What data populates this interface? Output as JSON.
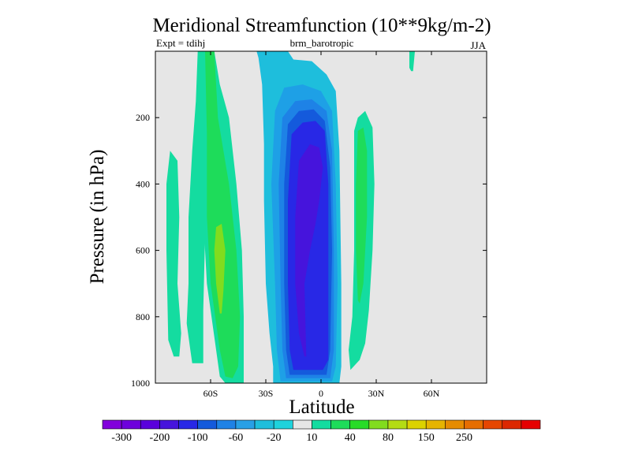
{
  "chart_data": {
    "type": "contour",
    "title": "Meridional Streamfunction (10**9kg/m-2)",
    "left_subtitle": "Expt = tdihj",
    "center_subtitle": "brm_barotropic",
    "right_subtitle": "JJA",
    "xlabel": "Latitude",
    "ylabel": "Pressure (in hPa)",
    "xlim": [
      -90,
      90
    ],
    "ylim": [
      1000,
      0
    ],
    "background_color": "#e6e6e6",
    "x_ticks": [
      {
        "value": -60,
        "label": "60S"
      },
      {
        "value": -30,
        "label": "30S"
      },
      {
        "value": 0,
        "label": "0"
      },
      {
        "value": 30,
        "label": "30N"
      },
      {
        "value": 60,
        "label": "60N"
      }
    ],
    "y_ticks": [
      {
        "value": 200,
        "label": "200"
      },
      {
        "value": 400,
        "label": "400"
      },
      {
        "value": 600,
        "label": "600"
      },
      {
        "value": 800,
        "label": "800"
      },
      {
        "value": 1000,
        "label": "1000"
      }
    ],
    "colorbar": {
      "colors": [
        "#8200dc",
        "#6e00dc",
        "#5a00dc",
        "#4614dc",
        "#2828e6",
        "#145adc",
        "#1e82e6",
        "#28a0e6",
        "#1ebedc",
        "#1ed2dc",
        "#e6e6e6",
        "#14dca0",
        "#1edc5a",
        "#28dc28",
        "#82dc1e",
        "#b4dc14",
        "#dcd200",
        "#e6b400",
        "#e68c00",
        "#e66e00",
        "#e64600",
        "#dc2800",
        "#e60000"
      ],
      "labels": [
        "-300",
        "-200",
        "-100",
        "-60",
        "-20",
        "10",
        "40",
        "80",
        "150",
        "250"
      ],
      "label_positions": [
        1,
        3,
        5,
        7,
        9,
        11,
        13,
        15,
        17,
        19
      ]
    },
    "contours": [
      {
        "level": "-20",
        "color": "#1ebedc",
        "points": [
          [
            -26,
            1000
          ],
          [
            -26,
            950
          ],
          [
            -28,
            850
          ],
          [
            -30,
            700
          ],
          [
            -31,
            450
          ],
          [
            -31,
            280
          ],
          [
            -32,
            100
          ],
          [
            -34,
            20
          ],
          [
            -35,
            0
          ],
          [
            -18,
            0
          ],
          [
            -15,
            25
          ],
          [
            -5,
            30
          ],
          [
            3,
            70
          ],
          [
            8,
            120
          ],
          [
            10,
            300
          ],
          [
            11,
            700
          ],
          [
            11,
            950
          ],
          [
            10,
            1000
          ]
        ]
      },
      {
        "level": "-40",
        "color": "#1ea0e6",
        "points": [
          [
            -22,
            995
          ],
          [
            -24,
            900
          ],
          [
            -25,
            700
          ],
          [
            -27,
            400
          ],
          [
            -25,
            180
          ],
          [
            -20,
            110
          ],
          [
            -10,
            100
          ],
          [
            0,
            120
          ],
          [
            6,
            180
          ],
          [
            8,
            400
          ],
          [
            9,
            700
          ],
          [
            8,
            950
          ],
          [
            6,
            995
          ]
        ]
      },
      {
        "level": "-60",
        "color": "#1e82e6",
        "points": [
          [
            -19,
            985
          ],
          [
            -21,
            900
          ],
          [
            -22,
            700
          ],
          [
            -23,
            400
          ],
          [
            -21,
            200
          ],
          [
            -14,
            150
          ],
          [
            -5,
            145
          ],
          [
            3,
            180
          ],
          [
            6,
            300
          ],
          [
            7,
            600
          ],
          [
            7,
            900
          ],
          [
            5,
            985
          ]
        ]
      },
      {
        "level": "-80",
        "color": "#145adc",
        "points": [
          [
            -17,
            975
          ],
          [
            -19,
            900
          ],
          [
            -20,
            700
          ],
          [
            -20,
            400
          ],
          [
            -18,
            220
          ],
          [
            -12,
            180
          ],
          [
            -4,
            175
          ],
          [
            2,
            210
          ],
          [
            5,
            350
          ],
          [
            6,
            600
          ],
          [
            5,
            900
          ],
          [
            3,
            975
          ]
        ]
      },
      {
        "level": "-100",
        "color": "#2828e6",
        "points": [
          [
            -15,
            960
          ],
          [
            -17,
            900
          ],
          [
            -18,
            700
          ],
          [
            -18,
            450
          ],
          [
            -16,
            250
          ],
          [
            -10,
            215
          ],
          [
            -3,
            210
          ],
          [
            2,
            240
          ],
          [
            4,
            400
          ],
          [
            4,
            700
          ],
          [
            4,
            930
          ],
          [
            1,
            960
          ]
        ]
      },
      {
        "level": "-120",
        "color": "#4614dc",
        "points": [
          [
            -9,
            920
          ],
          [
            -12,
            850
          ],
          [
            -14,
            700
          ],
          [
            -14,
            500
          ],
          [
            -12,
            330
          ],
          [
            -6,
            280
          ],
          [
            -1,
            290
          ],
          [
            1,
            350
          ],
          [
            -1,
            450
          ],
          [
            -3,
            520
          ],
          [
            -6,
            600
          ],
          [
            -9,
            700
          ],
          [
            -8,
            920
          ]
        ]
      },
      {
        "level": "10",
        "color": "#14dca0",
        "points": [
          [
            -52,
            1000
          ],
          [
            -55,
            980
          ],
          [
            -57,
            900
          ],
          [
            -62,
            700
          ],
          [
            -64,
            500
          ],
          [
            -65,
            200
          ],
          [
            -65,
            0
          ],
          [
            -58,
            0
          ],
          [
            -55,
            100
          ],
          [
            -50,
            200
          ],
          [
            -46,
            400
          ],
          [
            -43,
            600
          ],
          [
            -42,
            800
          ],
          [
            -42,
            1000
          ]
        ]
      },
      {
        "level": "10",
        "color": "#14dca0",
        "points": [
          [
            -80,
            920
          ],
          [
            -83,
            870
          ],
          [
            -84,
            600
          ],
          [
            -84,
            400
          ],
          [
            -82,
            300
          ],
          [
            -78,
            330
          ],
          [
            -77,
            500
          ],
          [
            -78,
            700
          ],
          [
            -76,
            850
          ],
          [
            -77,
            920
          ]
        ]
      },
      {
        "level": "10",
        "color": "#14dca0",
        "points": [
          [
            -70,
            940
          ],
          [
            -71,
            900
          ],
          [
            -73,
            820
          ],
          [
            -72,
            700
          ],
          [
            -72,
            500
          ],
          [
            -70,
            300
          ],
          [
            -68,
            150
          ],
          [
            -67,
            0
          ],
          [
            -64,
            0
          ],
          [
            -63,
            150
          ],
          [
            -62,
            350
          ],
          [
            -63,
            560
          ],
          [
            -64,
            780
          ],
          [
            -64,
            940
          ]
        ]
      },
      {
        "level": "10",
        "color": "#14dca0",
        "points": [
          [
            16,
            960
          ],
          [
            15,
            900
          ],
          [
            17,
            800
          ],
          [
            18,
            600
          ],
          [
            18,
            400
          ],
          [
            18,
            240
          ],
          [
            20,
            200
          ],
          [
            24,
            180
          ],
          [
            28,
            230
          ],
          [
            29,
            400
          ],
          [
            28,
            600
          ],
          [
            26,
            780
          ],
          [
            24,
            880
          ],
          [
            21,
            930
          ]
        ]
      },
      {
        "level": "10",
        "color": "#14dca0",
        "points": [
          [
            48,
            50
          ],
          [
            48,
            0
          ],
          [
            51,
            0
          ],
          [
            50,
            60
          ],
          [
            49,
            60
          ]
        ]
      },
      {
        "level": "40",
        "color": "#1edc5a",
        "points": [
          [
            -52,
            980
          ],
          [
            -55,
            900
          ],
          [
            -60,
            700
          ],
          [
            -62,
            500
          ],
          [
            -62,
            250
          ],
          [
            -63,
            0
          ],
          [
            -58,
            0
          ],
          [
            -56,
            200
          ],
          [
            -50,
            400
          ],
          [
            -46,
            600
          ],
          [
            -44,
            800
          ],
          [
            -45,
            950
          ],
          [
            -48,
            985
          ]
        ]
      },
      {
        "level": "40",
        "color": "#1edc5a",
        "points": [
          [
            20,
            750
          ],
          [
            19,
            600
          ],
          [
            19,
            400
          ],
          [
            20,
            240
          ],
          [
            23,
            230
          ],
          [
            25,
            300
          ],
          [
            25,
            500
          ],
          [
            23,
            700
          ],
          [
            21,
            760
          ]
        ]
      },
      {
        "level": "80",
        "color": "#82dc1e",
        "points": [
          [
            -55,
            790
          ],
          [
            -57,
            700
          ],
          [
            -58,
            600
          ],
          [
            -57,
            530
          ],
          [
            -54,
            520
          ],
          [
            -52,
            600
          ],
          [
            -53,
            720
          ],
          [
            -54,
            790
          ]
        ]
      }
    ]
  }
}
